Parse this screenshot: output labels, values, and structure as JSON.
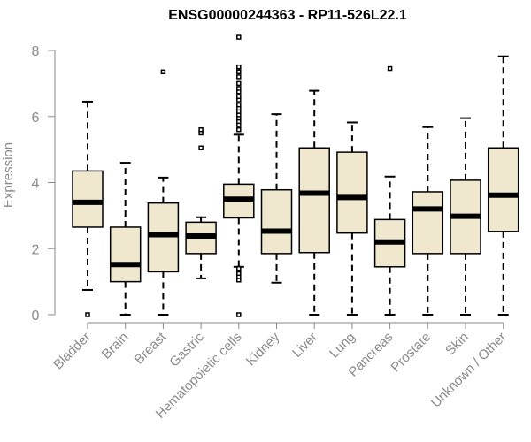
{
  "chart_data": {
    "type": "boxplot",
    "title": "ENSG00000244363 - RP11-526L22.1",
    "xlabel": "",
    "ylabel": "Expression",
    "ylim": [
      0,
      8.3
    ],
    "yticks": [
      0,
      2,
      4,
      6,
      8
    ],
    "colors": {
      "box_fill": "#efe8cf",
      "box_stroke": "#000000",
      "axis": "#8a8a8a"
    },
    "categories": [
      "Bladder",
      "Brain",
      "Breast",
      "Gastric",
      "Hematopoietic cells",
      "Kidney",
      "Liver",
      "Lung",
      "Pancreas",
      "Prostate",
      "Skin",
      "Unknown / Other"
    ],
    "boxes": [
      {
        "name": "Bladder",
        "whisker_low": 0.75,
        "q1": 2.65,
        "median": 3.4,
        "q3": 4.35,
        "whisker_high": 6.45,
        "outliers": [
          0.0
        ]
      },
      {
        "name": "Brain",
        "whisker_low": 0.0,
        "q1": 1.0,
        "median": 1.52,
        "q3": 2.65,
        "whisker_high": 4.6,
        "outliers": []
      },
      {
        "name": "Breast",
        "whisker_low": 0.0,
        "q1": 1.3,
        "median": 2.42,
        "q3": 3.38,
        "whisker_high": 4.15,
        "outliers": [
          7.35
        ]
      },
      {
        "name": "Gastric",
        "whisker_low": 1.1,
        "q1": 1.85,
        "median": 2.38,
        "q3": 2.8,
        "whisker_high": 2.95,
        "outliers": [
          5.05,
          5.5,
          5.6
        ]
      },
      {
        "name": "Hematopoietic cells",
        "whisker_low": 1.45,
        "q1": 2.93,
        "median": 3.5,
        "q3": 3.95,
        "whisker_high": 5.45,
        "outliers": [
          0.0,
          1.05,
          1.15,
          1.25,
          1.35,
          1.4,
          5.6,
          5.75,
          5.85,
          5.95,
          6.05,
          6.15,
          6.25,
          6.35,
          6.5,
          6.6,
          6.75,
          6.85,
          7.0,
          7.2,
          7.35,
          7.5,
          8.4
        ]
      },
      {
        "name": "Kidney",
        "whisker_low": 0.97,
        "q1": 1.85,
        "median": 2.53,
        "q3": 3.78,
        "whisker_high": 6.07,
        "outliers": []
      },
      {
        "name": "Liver",
        "whisker_low": 0.0,
        "q1": 1.88,
        "median": 3.68,
        "q3": 5.05,
        "whisker_high": 6.78,
        "outliers": []
      },
      {
        "name": "Lung",
        "whisker_low": 0.0,
        "q1": 2.47,
        "median": 3.55,
        "q3": 4.92,
        "whisker_high": 5.82,
        "outliers": []
      },
      {
        "name": "Pancreas",
        "whisker_low": 0.0,
        "q1": 1.45,
        "median": 2.2,
        "q3": 2.88,
        "whisker_high": 4.18,
        "outliers": [
          7.45
        ]
      },
      {
        "name": "Prostate",
        "whisker_low": 0.0,
        "q1": 1.85,
        "median": 3.2,
        "q3": 3.72,
        "whisker_high": 5.68,
        "outliers": []
      },
      {
        "name": "Skin",
        "whisker_low": 0.0,
        "q1": 1.85,
        "median": 2.98,
        "q3": 4.07,
        "whisker_high": 5.95,
        "outliers": []
      },
      {
        "name": "Unknown / Other",
        "whisker_low": 0.0,
        "q1": 2.52,
        "median": 3.62,
        "q3": 5.05,
        "whisker_high": 7.82,
        "outliers": []
      }
    ]
  }
}
